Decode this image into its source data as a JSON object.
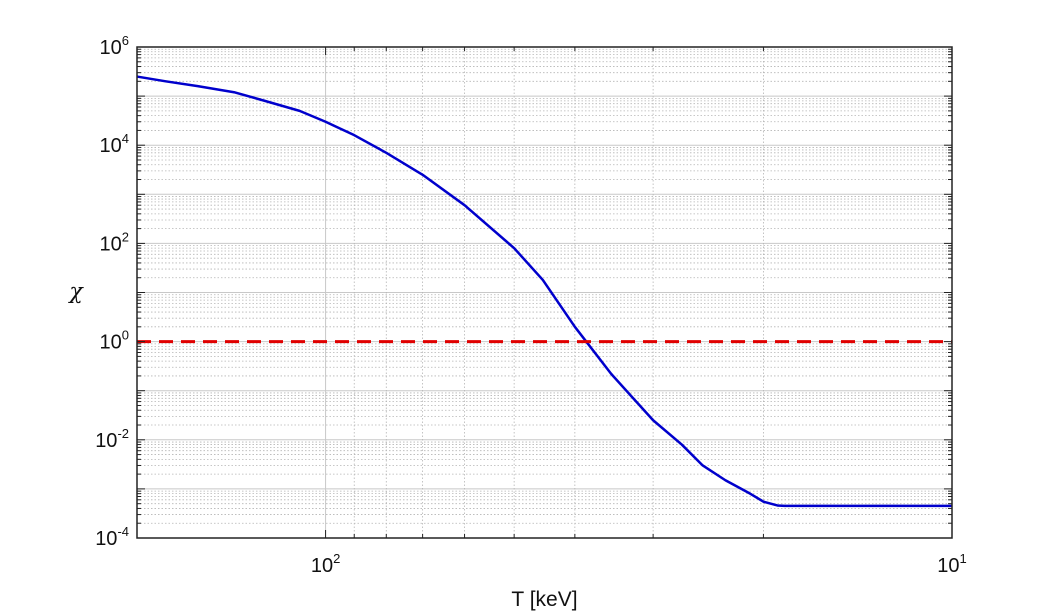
{
  "chart_data": {
    "type": "line",
    "title": "",
    "xlabel": "T [keV]",
    "ylabel": "χ",
    "xscale": "log",
    "yscale": "log",
    "x_reversed": true,
    "xlim": [
      200,
      10
    ],
    "ylim": [
      0.0001,
      1000000
    ],
    "grid": true,
    "minor_grid": true,
    "legend": "none",
    "x_ticks": [
      {
        "value": 100,
        "base": "10",
        "exp": "2"
      },
      {
        "value": 10,
        "base": "10",
        "exp": "1"
      }
    ],
    "y_ticks": [
      {
        "value": 1000000,
        "base": "10",
        "exp": "6"
      },
      {
        "value": 10000,
        "base": "10",
        "exp": "4"
      },
      {
        "value": 100,
        "base": "10",
        "exp": "2"
      },
      {
        "value": 1,
        "base": "10",
        "exp": "0"
      },
      {
        "value": 0.01,
        "base": "10",
        "exp": "-2"
      },
      {
        "value": 0.0001,
        "base": "10",
        "exp": "-4"
      }
    ],
    "series": [
      {
        "style": "solid",
        "color": "#0000cc",
        "x": [
          200,
          180,
          160,
          140,
          125,
          110,
          100,
          90,
          80,
          70,
          60,
          50,
          45,
          40,
          35,
          30,
          27,
          25,
          23,
          21,
          20,
          19,
          18.5,
          18,
          17,
          15,
          12,
          10
        ],
        "y": [
          250000,
          200000,
          160000,
          120000,
          80000,
          50000,
          30000,
          16000,
          7000,
          2500,
          600,
          80,
          18,
          2.0,
          0.22,
          0.025,
          0.008,
          0.003,
          0.0015,
          0.0008,
          0.00055,
          0.00046,
          0.00045,
          0.00045,
          0.00045,
          0.00045,
          0.00045,
          0.00045
        ]
      },
      {
        "style": "dashed",
        "color": "#e00000",
        "x": [
          200,
          10
        ],
        "y": [
          1,
          1
        ]
      }
    ]
  }
}
